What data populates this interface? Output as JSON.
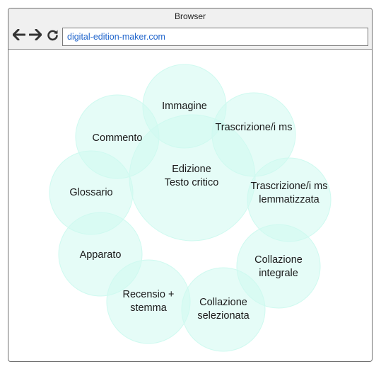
{
  "window": {
    "title": "Browser",
    "url": "digital-edition-maker.com"
  },
  "toolbar": {
    "back_icon": "arrow-left-icon",
    "forward_icon": "arrow-right-icon",
    "reload_icon": "reload-icon"
  },
  "diagram": {
    "center": {
      "line1": "Edizione",
      "line2": "Testo critico"
    },
    "nodes": [
      {
        "id": "immagine",
        "line1": "Immagine",
        "line2": ""
      },
      {
        "id": "trascrizione",
        "line1": "Trascrizione/i ms",
        "line2": ""
      },
      {
        "id": "trascrizione-lemmatizzata",
        "line1": "Trascrizione/i ms",
        "line2": "lemmatizzata"
      },
      {
        "id": "collazione-integrale",
        "line1": "Collazione",
        "line2": "integrale"
      },
      {
        "id": "collazione-selezionata",
        "line1": "Collazione",
        "line2": "selezionata"
      },
      {
        "id": "recensio-stemma",
        "line1": "Recensio +",
        "line2": "stemma"
      },
      {
        "id": "apparato",
        "line1": "Apparato",
        "line2": ""
      },
      {
        "id": "glossario",
        "line1": "Glossario",
        "line2": ""
      },
      {
        "id": "commento",
        "line1": "Commento",
        "line2": ""
      }
    ],
    "fill_color": "#cffaf0"
  }
}
